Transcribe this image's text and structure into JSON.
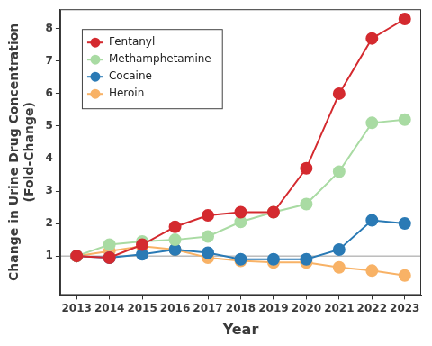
{
  "chart_data": {
    "type": "line",
    "x_label": "Year",
    "y_label": [
      "Change in Urine Drug Concentration",
      "(Fold-Change)"
    ],
    "categories": [
      "2013",
      "2014",
      "2015",
      "2016",
      "2017",
      "2018",
      "2019",
      "2020",
      "2021",
      "2022",
      "2023"
    ],
    "series": [
      {
        "name": "Fentanyl",
        "color": "#d42a2f",
        "values": [
          1.0,
          0.95,
          1.35,
          1.9,
          2.25,
          2.35,
          2.35,
          3.7,
          6.0,
          7.7,
          8.3
        ]
      },
      {
        "name": "Methamphetamine",
        "color": "#a9dba3",
        "values": [
          1.0,
          1.35,
          1.45,
          1.5,
          1.6,
          2.05,
          2.35,
          2.6,
          3.6,
          5.1,
          5.2
        ]
      },
      {
        "name": "Cocaine",
        "color": "#2a7ab5",
        "values": [
          1.0,
          0.95,
          1.05,
          1.2,
          1.1,
          0.9,
          0.9,
          0.9,
          1.2,
          2.1,
          2.0
        ]
      },
      {
        "name": "Heroin",
        "color": "#f8b266",
        "values": [
          1.0,
          1.15,
          1.3,
          1.2,
          0.95,
          0.85,
          0.8,
          0.8,
          0.65,
          0.55,
          0.4
        ]
      }
    ],
    "baseline": 1,
    "ylim": [
      -0.2,
      8.6
    ],
    "yticks": [
      1,
      2,
      3,
      4,
      5,
      6,
      7,
      8
    ],
    "grid": false,
    "legend": "upper left",
    "marker": "circle"
  }
}
